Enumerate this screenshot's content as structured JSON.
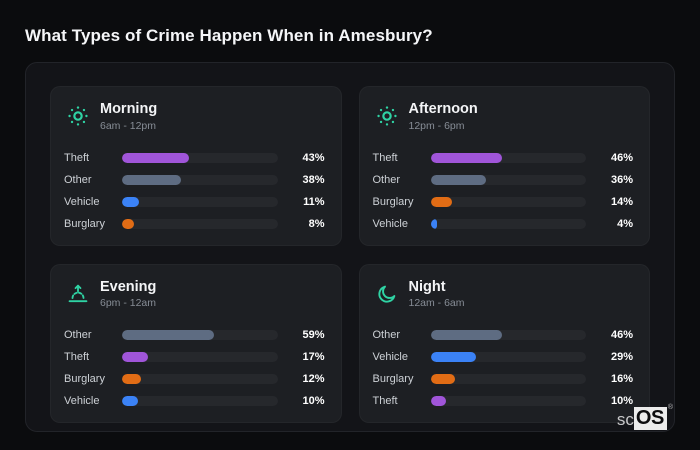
{
  "page": {
    "title": "What Types of Crime Happen When in Amesbury?"
  },
  "brand": {
    "prefix": "sc",
    "suffix": "OS",
    "registered": "®"
  },
  "colors": {
    "accent_teal": "#2fd3a4",
    "theft": "#a055d9",
    "other": "#5e6c82",
    "vehicle": "#3b82f6",
    "burglary": "#e16c15",
    "track": "#26282c"
  },
  "chart_data": [
    {
      "type": "bar",
      "orientation": "horizontal",
      "title": "Morning",
      "subtitle": "6am - 12pm",
      "icon": "sun-icon",
      "xlim": [
        0,
        100
      ],
      "categories": [
        "Theft",
        "Other",
        "Vehicle",
        "Burglary"
      ],
      "values": [
        43,
        38,
        11,
        8
      ],
      "value_labels": [
        "43%",
        "38%",
        "11%",
        "8%"
      ]
    },
    {
      "type": "bar",
      "orientation": "horizontal",
      "title": "Afternoon",
      "subtitle": "12pm - 6pm",
      "icon": "sun-icon",
      "xlim": [
        0,
        100
      ],
      "categories": [
        "Theft",
        "Other",
        "Burglary",
        "Vehicle"
      ],
      "values": [
        46,
        36,
        14,
        4
      ],
      "value_labels": [
        "46%",
        "36%",
        "14%",
        "4%"
      ]
    },
    {
      "type": "bar",
      "orientation": "horizontal",
      "title": "Evening",
      "subtitle": "6pm - 12am",
      "icon": "sunrise-icon",
      "xlim": [
        0,
        100
      ],
      "categories": [
        "Other",
        "Theft",
        "Burglary",
        "Vehicle"
      ],
      "values": [
        59,
        17,
        12,
        10
      ],
      "value_labels": [
        "59%",
        "17%",
        "12%",
        "10%"
      ]
    },
    {
      "type": "bar",
      "orientation": "horizontal",
      "title": "Night",
      "subtitle": "12am - 6am",
      "icon": "moon-icon",
      "xlim": [
        0,
        100
      ],
      "categories": [
        "Other",
        "Vehicle",
        "Burglary",
        "Theft"
      ],
      "values": [
        46,
        29,
        16,
        10
      ],
      "value_labels": [
        "46%",
        "29%",
        "16%",
        "10%"
      ]
    }
  ]
}
